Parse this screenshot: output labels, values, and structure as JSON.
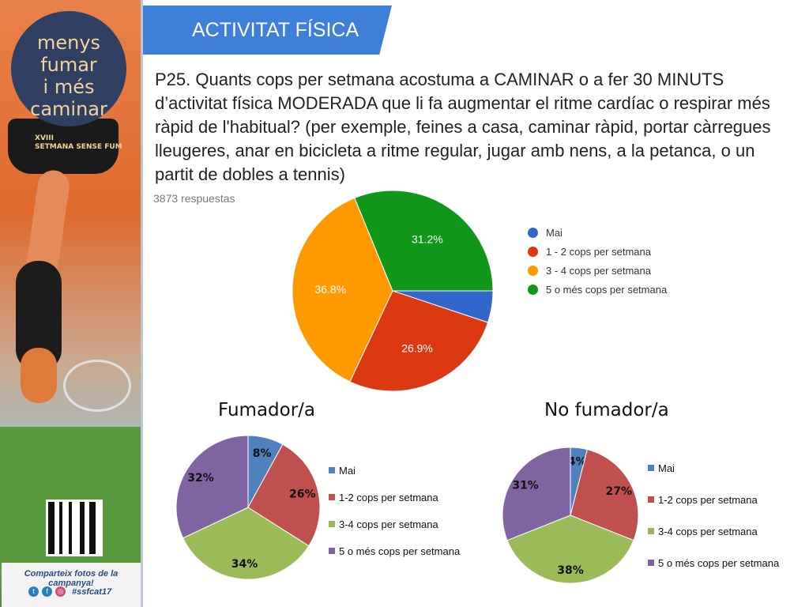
{
  "header": {
    "title": "ACTIVITAT FÍSICA"
  },
  "question": "P25. Quants cops per setmana acostuma a CAMINAR o a fer 30 MINUTS d’activitat física MODERADA que li fa augmentar el ritme cardíac o respirar més ràpid de l'habitual? (per exemple, feines a casa, caminar ràpid, portar càrregues lleugeres, anar en bicicleta a ritme regular, jugar amb nens, a la petanca, o un partit de dobles a tennis)",
  "responses": "3873 respuestas",
  "banner": {
    "line1": "menys",
    "line2": "fumar",
    "line3": "i més",
    "line4": "caminar",
    "edition1": "XVIII",
    "edition2": "SETMANA SENSE FUM",
    "share": "Comparteix fotos de la campanya!",
    "hashtag": "#ssfcat17"
  },
  "chart_data": [
    {
      "type": "pie",
      "categories": [
        "Mai",
        "1 - 2 cops per setmana",
        "3 - 4 cops per setmana",
        "5 o més cops per setmana"
      ],
      "values": [
        5.1,
        26.9,
        36.8,
        31.2
      ],
      "labels": [
        "",
        "26.9%",
        "36.8%",
        "31.2%"
      ],
      "colors": [
        "#3366cc",
        "#dc3912",
        "#ff9900",
        "#109618"
      ],
      "legend_position": "right"
    },
    {
      "type": "pie",
      "title": "Fumador/a",
      "categories": [
        "Mai",
        "1-2 cops per setmana",
        "3-4 cops per setmana",
        "5 o més cops per setmana"
      ],
      "values": [
        8,
        26,
        34,
        32
      ],
      "labels": [
        "8%",
        "26%",
        "34%",
        "32%"
      ],
      "colors": [
        "#4f81bd",
        "#c0504d",
        "#9bbb59",
        "#8064a2"
      ],
      "legend_position": "right"
    },
    {
      "type": "pie",
      "title": "No fumador/a",
      "categories": [
        "Mai",
        "1-2 cops per setmana",
        "3-4 cops per setmana",
        "5 o més cops per setmana"
      ],
      "values": [
        4,
        27,
        38,
        31
      ],
      "labels": [
        "4%",
        "27%",
        "38%",
        "31%"
      ],
      "colors": [
        "#4f81bd",
        "#c0504d",
        "#9bbb59",
        "#8064a2"
      ],
      "legend_position": "right"
    }
  ]
}
